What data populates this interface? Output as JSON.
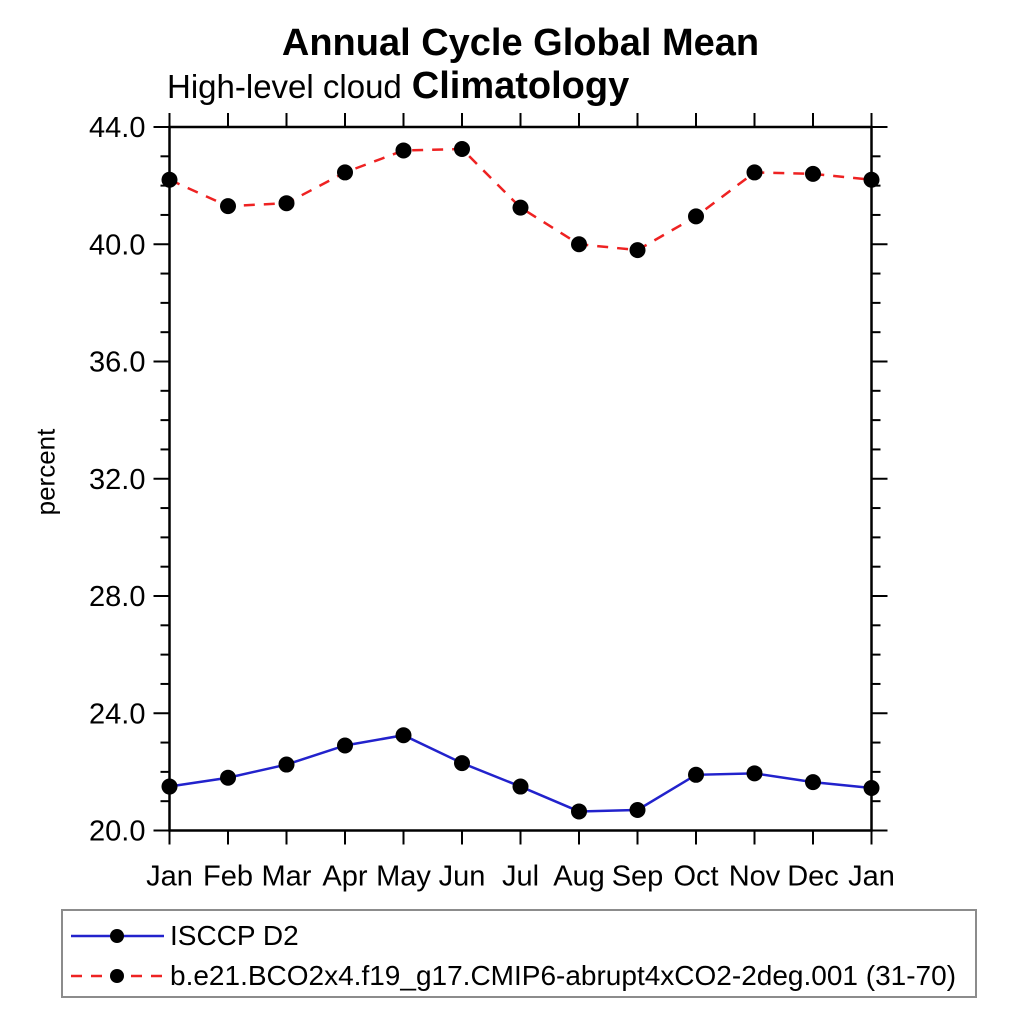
{
  "window": {
    "background": "#ffffff",
    "frame_color": "#000000"
  },
  "chart_data": {
    "type": "line",
    "title": "Annual Cycle Global Mean Climatology",
    "subtitle": "High-level cloud",
    "ylabel": "percent",
    "xlabel": "",
    "categories": [
      "Jan",
      "Feb",
      "Mar",
      "Apr",
      "May",
      "Jun",
      "Jul",
      "Aug",
      "Sep",
      "Oct",
      "Nov",
      "Dec",
      "Jan"
    ],
    "ylim": [
      20.0,
      44.0
    ],
    "ytick_major_step": 4.0,
    "ytick_minor_step": 1.0,
    "ytick_labels": [
      "20.0",
      "24.0",
      "28.0",
      "32.0",
      "36.0",
      "40.0",
      "44.0"
    ],
    "grid": false,
    "legend_position": "bottom-left-box",
    "series": [
      {
        "name": "ISCCP D2",
        "color": "#2222cc",
        "style": "solid",
        "marker": "filled-circle",
        "marker_color": "#000000",
        "values": [
          21.5,
          21.8,
          22.25,
          22.9,
          23.25,
          22.3,
          21.5,
          20.65,
          20.7,
          21.9,
          21.95,
          21.65,
          21.45
        ]
      },
      {
        "name": "b.e21.BCO2x4.f19_g17.CMIP6-abrupt4xCO2-2deg.001 (31-70)",
        "color": "#ee2222",
        "style": "dashed",
        "marker": "filled-circle",
        "marker_color": "#000000",
        "values": [
          42.2,
          41.3,
          41.4,
          42.45,
          43.2,
          43.25,
          41.25,
          40.0,
          39.8,
          40.95,
          42.45,
          42.4,
          42.2
        ]
      }
    ]
  }
}
